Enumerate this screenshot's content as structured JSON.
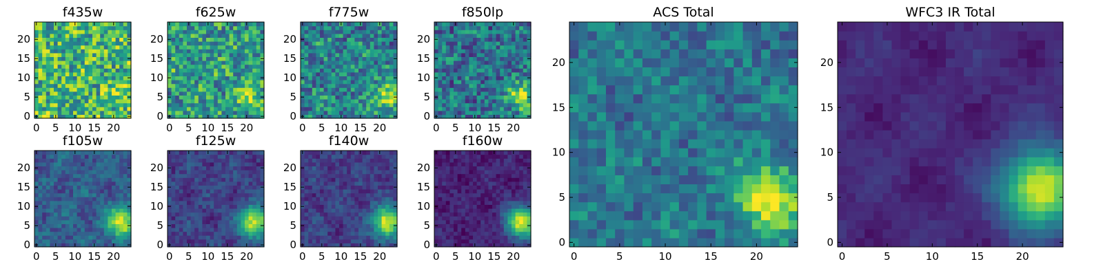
{
  "chart_data": [
    {
      "type": "heatmap",
      "title": "f435w",
      "colormap": "viridis",
      "grid_size": 25,
      "xlim": [
        -0.5,
        24.5
      ],
      "ylim": [
        -0.5,
        24.5
      ],
      "x_ticks": [
        0,
        5,
        10,
        15,
        20
      ],
      "y_ticks": [
        0,
        5,
        10,
        15,
        20
      ],
      "noise": 0.32,
      "background": 0.66,
      "source": {
        "x": 21,
        "y": 5,
        "amp": 0.14,
        "sigma": 2.2
      },
      "mottle": 0.05
    },
    {
      "type": "heatmap",
      "title": "f625w",
      "colormap": "viridis",
      "grid_size": 25,
      "xlim": [
        -0.5,
        24.5
      ],
      "ylim": [
        -0.5,
        24.5
      ],
      "x_ticks": [
        0,
        5,
        10,
        15,
        20
      ],
      "y_ticks": [
        0,
        5,
        10,
        15,
        20
      ],
      "noise": 0.28,
      "background": 0.55,
      "source": {
        "x": 21,
        "y": 5,
        "amp": 0.36,
        "sigma": 2.3
      },
      "mottle": 0.08
    },
    {
      "type": "heatmap",
      "title": "f775w",
      "colormap": "viridis",
      "grid_size": 25,
      "xlim": [
        -0.5,
        24.5
      ],
      "ylim": [
        -0.5,
        24.5
      ],
      "x_ticks": [
        0,
        5,
        10,
        15,
        20
      ],
      "y_ticks": [
        0,
        5,
        10,
        15,
        20
      ],
      "noise": 0.26,
      "background": 0.45,
      "source": {
        "x": 22,
        "y": 5,
        "amp": 0.52,
        "sigma": 2.4
      },
      "mottle": 0.08
    },
    {
      "type": "heatmap",
      "title": "f850lp",
      "colormap": "viridis",
      "grid_size": 25,
      "xlim": [
        -0.5,
        24.5
      ],
      "ylim": [
        -0.5,
        24.5
      ],
      "x_ticks": [
        0,
        5,
        10,
        15,
        20
      ],
      "y_ticks": [
        0,
        5,
        10,
        15,
        20
      ],
      "noise": 0.24,
      "background": 0.38,
      "source": {
        "x": 22,
        "y": 5,
        "amp": 0.58,
        "sigma": 2.4
      },
      "mottle": 0.06
    },
    {
      "type": "heatmap",
      "title": "f105w",
      "colormap": "viridis",
      "grid_size": 25,
      "xlim": [
        -0.5,
        24.5
      ],
      "ylim": [
        -0.5,
        24.5
      ],
      "x_ticks": [
        0,
        5,
        10,
        15,
        20
      ],
      "y_ticks": [
        0,
        5,
        10,
        15,
        20
      ],
      "noise": 0.12,
      "background": 0.3,
      "source": {
        "x": 22,
        "y": 6,
        "amp": 0.68,
        "sigma": 2.6
      },
      "mottle": 0.06
    },
    {
      "type": "heatmap",
      "title": "f125w",
      "colormap": "viridis",
      "grid_size": 25,
      "xlim": [
        -0.5,
        24.5
      ],
      "ylim": [
        -0.5,
        24.5
      ],
      "x_ticks": [
        0,
        5,
        10,
        15,
        20
      ],
      "y_ticks": [
        0,
        5,
        10,
        15,
        20
      ],
      "noise": 0.1,
      "background": 0.2,
      "source": {
        "x": 22,
        "y": 6,
        "amp": 0.78,
        "sigma": 2.7
      },
      "mottle": 0.05
    },
    {
      "type": "heatmap",
      "title": "f140w",
      "colormap": "viridis",
      "grid_size": 25,
      "xlim": [
        -0.5,
        24.5
      ],
      "ylim": [
        -0.5,
        24.5
      ],
      "x_ticks": [
        0,
        5,
        10,
        15,
        20
      ],
      "y_ticks": [
        0,
        5,
        10,
        15,
        20
      ],
      "noise": 0.1,
      "background": 0.19,
      "source": {
        "x": 22,
        "y": 6,
        "amp": 0.8,
        "sigma": 2.7
      },
      "mottle": 0.05
    },
    {
      "type": "heatmap",
      "title": "f160w",
      "colormap": "viridis",
      "grid_size": 25,
      "xlim": [
        -0.5,
        24.5
      ],
      "ylim": [
        -0.5,
        24.5
      ],
      "x_ticks": [
        0,
        5,
        10,
        15,
        20
      ],
      "y_ticks": [
        0,
        5,
        10,
        15,
        20
      ],
      "noise": 0.08,
      "background": 0.1,
      "source": {
        "x": 22,
        "y": 6,
        "amp": 0.88,
        "sigma": 2.8
      },
      "mottle": 0.04
    },
    {
      "type": "heatmap",
      "title": "ACS Total",
      "colormap": "viridis",
      "grid_size": 25,
      "xlim": [
        -0.5,
        24.5
      ],
      "ylim": [
        -0.5,
        24.5
      ],
      "x_ticks": [
        0,
        5,
        10,
        15,
        20
      ],
      "y_ticks": [
        0,
        5,
        10,
        15,
        20
      ],
      "noise": 0.16,
      "background": 0.4,
      "source": {
        "x": 21.5,
        "y": 5,
        "amp": 0.6,
        "sigma": 2.5
      },
      "mottle": 0.06
    },
    {
      "type": "heatmap",
      "title": "WFC3 IR Total",
      "colormap": "viridis",
      "grid_size": 25,
      "xlim": [
        -0.5,
        24.5
      ],
      "ylim": [
        -0.5,
        24.5
      ],
      "x_ticks": [
        0,
        5,
        10,
        15,
        20
      ],
      "y_ticks": [
        0,
        5,
        10,
        15,
        20
      ],
      "noise": 0.04,
      "background": 0.12,
      "source": {
        "x": 22,
        "y": 6,
        "amp": 0.86,
        "sigma": 3.0
      },
      "mottle": 0.05
    }
  ]
}
